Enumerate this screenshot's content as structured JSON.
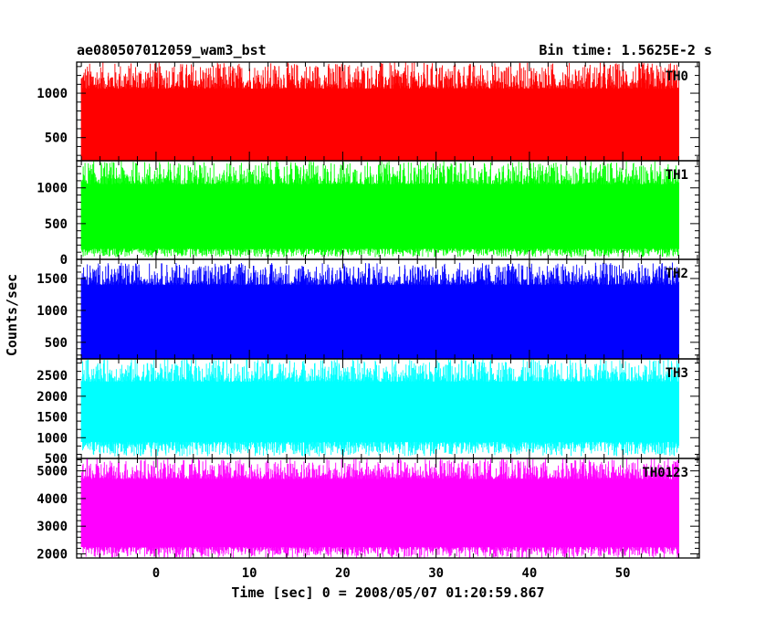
{
  "chart_data": {
    "type": "line",
    "title": "ae080507012059_wam3_bst",
    "subtitle": "Bin time: 1.5625E-2 s",
    "xlabel": "Time [sec] 0 = 2008/05/07 01:20:59.867",
    "ylabel": "Counts/sec",
    "xlim": [
      -8.5,
      58.2
    ],
    "x_ticks": [
      0,
      10,
      20,
      30,
      40,
      50
    ],
    "x_data_range": [
      -8.0,
      56.0
    ],
    "bin_time_s": 0.015625,
    "panels": [
      {
        "name": "TH0",
        "color": "#ff0000",
        "ylim": [
          240,
          1350
        ],
        "yticks": [
          500,
          1000
        ],
        "median": 560,
        "p_low": 150,
        "p_high": 1050,
        "peak_max": 1350,
        "floor_min": 30
      },
      {
        "name": "TH1",
        "color": "#00ff00",
        "ylim": [
          0,
          1380
        ],
        "yticks": [
          0,
          500,
          1000
        ],
        "median": 560,
        "p_low": 150,
        "p_high": 1050,
        "peak_max": 1380,
        "floor_min": 30
      },
      {
        "name": "TH2",
        "color": "#0000ff",
        "ylim": [
          240,
          1800
        ],
        "yticks": [
          500,
          1000,
          1500
        ],
        "median": 800,
        "p_low": 250,
        "p_high": 1400,
        "peak_max": 1750,
        "floor_min": 80
      },
      {
        "name": "TH3",
        "color": "#00ffff",
        "ylim": [
          500,
          2900
        ],
        "yticks": [
          500,
          1000,
          1500,
          2000,
          2500
        ],
        "median": 1500,
        "p_low": 900,
        "p_high": 2350,
        "peak_max": 2900,
        "floor_min": 550
      },
      {
        "name": "TH0123",
        "color": "#ff00ff",
        "ylim": [
          1850,
          5450
        ],
        "yticks": [
          2000,
          3000,
          4000,
          5000
        ],
        "median": 3300,
        "p_low": 2250,
        "p_high": 4700,
        "peak_max": 5450,
        "floor_min": 1850
      }
    ]
  }
}
